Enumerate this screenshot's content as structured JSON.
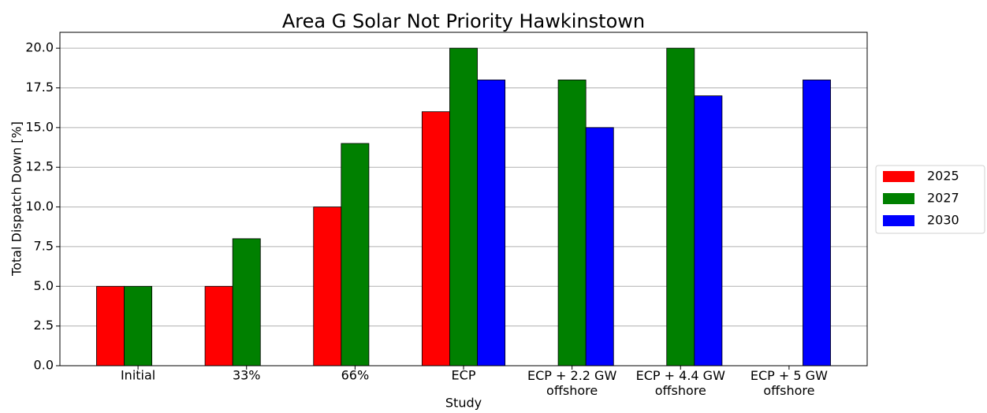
{
  "chart_data": {
    "type": "bar",
    "title": "Area G Solar Not Priority Hawkinstown",
    "x_label": "Study",
    "y_label": "Total Dispatch Down [%]",
    "categories": [
      "Initial",
      "33%",
      "66%",
      "ECP",
      "ECP + 2.2 GW\noffshore",
      "ECP + 4.4 GW\noffshore",
      "ECP + 5 GW\noffshore"
    ],
    "series": [
      {
        "name": "2025",
        "color": "#ff0000",
        "values": [
          5,
          5,
          10,
          16,
          null,
          null,
          null
        ]
      },
      {
        "name": "2027",
        "color": "#008000",
        "values": [
          5,
          8,
          14,
          20,
          18,
          20,
          null
        ]
      },
      {
        "name": "2030",
        "color": "#0000ff",
        "values": [
          null,
          null,
          null,
          18,
          15,
          17,
          18
        ]
      }
    ],
    "ylim": [
      0,
      21
    ],
    "yticks": [
      {
        "value": 0,
        "label": "0.0"
      },
      {
        "value": 2.5,
        "label": "2.5"
      },
      {
        "value": 5,
        "label": "5.0"
      },
      {
        "value": 7.5,
        "label": "7.5"
      },
      {
        "value": 10,
        "label": "10.0"
      },
      {
        "value": 12.5,
        "label": "12.5"
      },
      {
        "value": 15,
        "label": "15.0"
      },
      {
        "value": 17.5,
        "label": "17.5"
      },
      {
        "value": 20,
        "label": "20.0"
      }
    ],
    "grid": true,
    "legend": "right"
  }
}
